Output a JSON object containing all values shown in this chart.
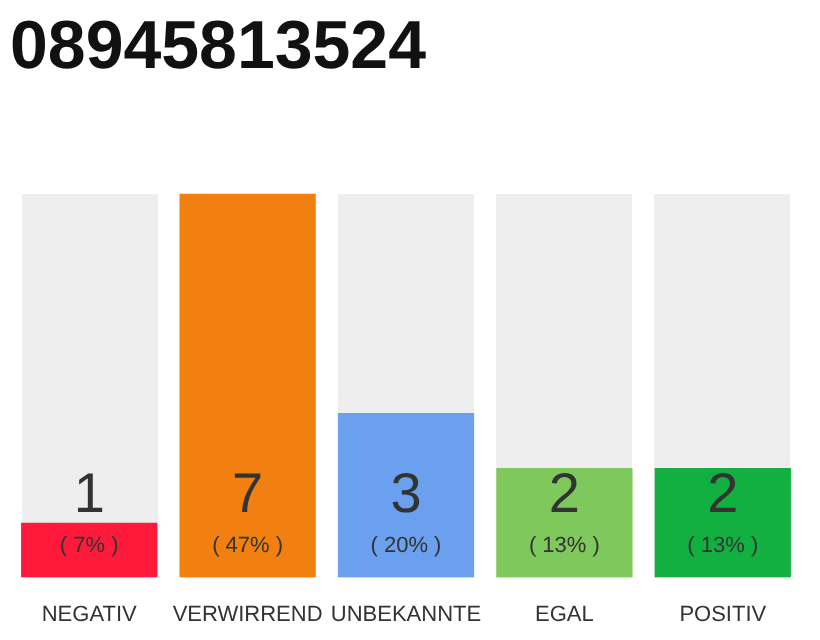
{
  "chart_data": {
    "type": "bar",
    "title": "08945813524",
    "categories": [
      "NEGATIV",
      "VERWIRREND",
      "UNBEKANNTE",
      "EGAL",
      "POSITIV"
    ],
    "values": [
      1,
      7,
      3,
      2,
      2
    ],
    "colors": [
      "#ff1a3c",
      "#f28010",
      "#6aa0ee",
      "#7ec85c",
      "#12b040"
    ],
    "data_labels": true,
    "annotations": [
      "( 7% )",
      "( 47% )",
      "( 20% )",
      "( 13% )",
      "( 13% )"
    ],
    "grid": false,
    "legend": false,
    "tick_labels": "x"
  }
}
